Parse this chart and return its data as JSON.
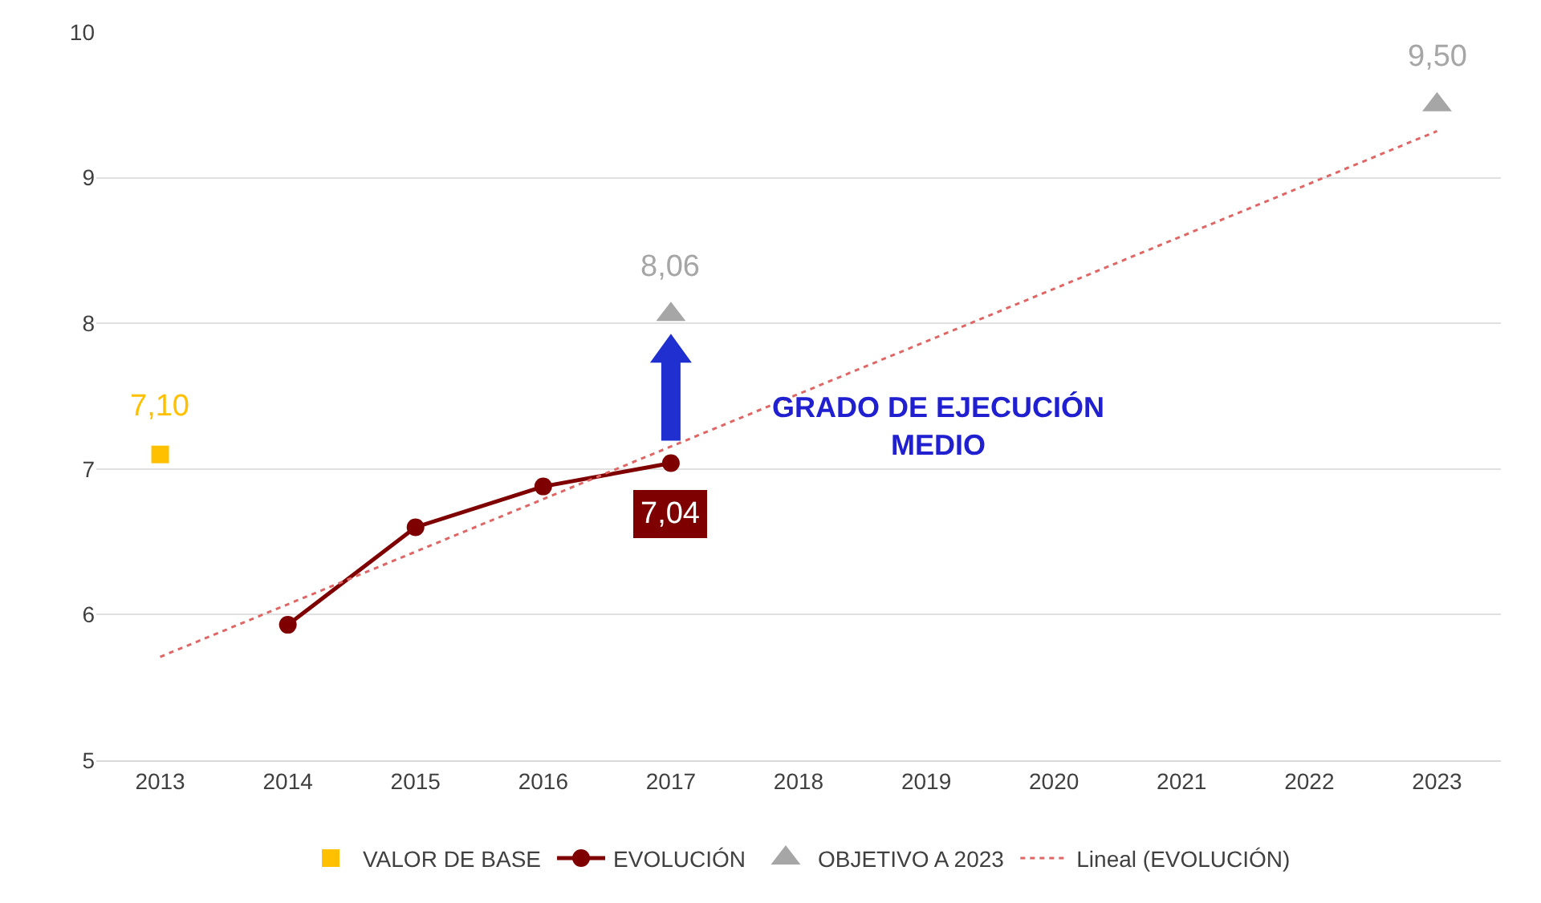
{
  "chart_data": {
    "type": "line",
    "xlim": [
      2012.5,
      2023.5
    ],
    "xticks": [
      2013,
      2014,
      2015,
      2016,
      2017,
      2018,
      2019,
      2020,
      2021,
      2022,
      2023
    ],
    "ylim": [
      5,
      10
    ],
    "yticks": [
      5,
      6,
      7,
      8,
      9,
      10
    ],
    "grid": "y",
    "legend": "bottom",
    "annotations": [
      "GRADO DE EJECUCIÓN\nMEDIO"
    ],
    "series": [
      {
        "name": "VALOR DE BASE",
        "type": "scatter",
        "marker": "square",
        "color": "#ffc000",
        "x": [
          2013
        ],
        "values": [
          7.1
        ],
        "value_labels": [
          "7,10"
        ]
      },
      {
        "name": "EVOLUCIÓN",
        "marker": "circle",
        "line_style": "solid",
        "color": "#7f0000",
        "x": [
          2014,
          2015,
          2016,
          2017
        ],
        "values": [
          5.93,
          6.6,
          6.88,
          7.04
        ],
        "value_labels": [
          null,
          null,
          null,
          "7,04"
        ]
      },
      {
        "name": "OBJETIVO A 2023",
        "type": "scatter",
        "marker": "triangle",
        "color": "#a6a6a6",
        "x": [
          2017,
          2023
        ],
        "values": [
          8.06,
          9.5
        ],
        "value_labels": [
          "8,06",
          "9,50"
        ]
      },
      {
        "name": "Lineal (EVOLUCIÓN)",
        "type": "line",
        "marker": "none",
        "line_style": "dotted",
        "color": "#e06666",
        "x": [
          2013,
          2023
        ],
        "values": [
          5.71,
          9.32
        ]
      }
    ]
  }
}
